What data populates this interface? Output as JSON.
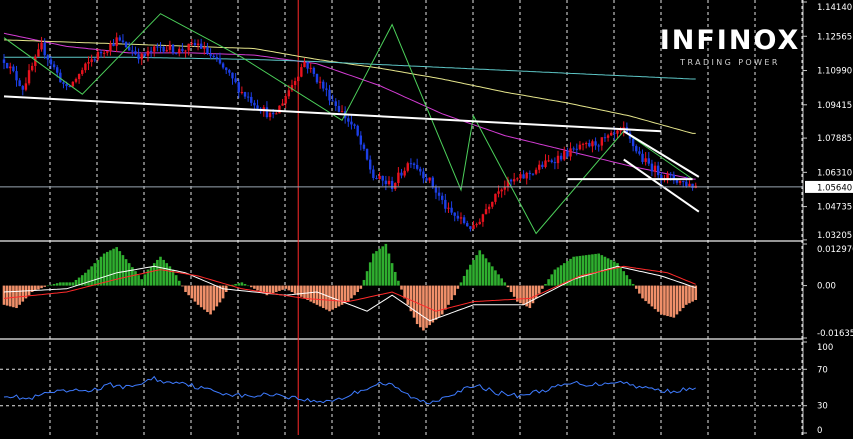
{
  "brand": {
    "name": "INFINOX",
    "tagline": "TRADING POWER"
  },
  "colors": {
    "background": "#000000",
    "grid": "#ffffff",
    "axis": "#c8c8c8",
    "text": "#ffffff",
    "bull_candle": "#e8121e",
    "bear_candle": "#1c3fe6",
    "ma_magenta": "#d43cd4",
    "ma_yellow": "#e6e68c",
    "ma_cyan": "#5ec8c8",
    "zigzag": "#4cd05a",
    "trendline": "#ffffff",
    "vertical_marker": "#ff2a2a",
    "histo_positive": "#2fae2f",
    "histo_negative": "#f0906a",
    "macd_line": "#ffffff",
    "signal_line": "#ff2a2a",
    "rsi_line": "#3e7bff"
  },
  "chart_data": [
    {
      "type": "candlestick",
      "panel": "price",
      "current_price": 1.0564,
      "current_price_label": "1.05640",
      "ylim": [
        1.032,
        1.1414
      ],
      "yticks": [
        {
          "value": 1.1414,
          "label": "1.14140"
        },
        {
          "value": 1.12565,
          "label": "1.12565"
        },
        {
          "value": 1.1099,
          "label": "1.10990"
        },
        {
          "value": 1.09415,
          "label": "1.09415"
        },
        {
          "value": 1.07885,
          "label": "1.07885"
        },
        {
          "value": 1.0631,
          "label": "1.06310"
        },
        {
          "value": 1.04735,
          "label": "1.04735"
        },
        {
          "value": 1.03205,
          "label": "1.03205"
        }
      ],
      "anchors": [
        [
          0,
          1.115
        ],
        [
          6,
          1.102
        ],
        [
          12,
          1.121
        ],
        [
          20,
          1.101
        ],
        [
          28,
          1.115
        ],
        [
          36,
          1.124
        ],
        [
          44,
          1.116
        ],
        [
          50,
          1.121
        ],
        [
          56,
          1.119
        ],
        [
          62,
          1.122
        ],
        [
          70,
          1.111
        ],
        [
          76,
          1.1
        ],
        [
          86,
          1.088
        ],
        [
          96,
          1.114
        ],
        [
          104,
          1.098
        ],
        [
          112,
          1.083
        ],
        [
          118,
          1.061
        ],
        [
          124,
          1.057
        ],
        [
          130,
          1.069
        ],
        [
          136,
          1.059
        ],
        [
          142,
          1.045
        ],
        [
          150,
          1.037
        ],
        [
          158,
          1.056
        ],
        [
          166,
          1.061
        ],
        [
          174,
          1.068
        ],
        [
          180,
          1.072
        ],
        [
          186,
          1.075
        ],
        [
          192,
          1.078
        ],
        [
          198,
          1.082
        ],
        [
          204,
          1.069
        ],
        [
          210,
          1.062
        ],
        [
          216,
          1.059
        ],
        [
          220,
          1.057
        ]
      ],
      "moving_averages": [
        {
          "color_key": "ma_magenta",
          "points": [
            [
              0,
              1.127
            ],
            [
              20,
              1.121
            ],
            [
              40,
              1.118
            ],
            [
              60,
              1.118
            ],
            [
              80,
              1.117
            ],
            [
              100,
              1.113
            ],
            [
              120,
              1.103
            ],
            [
              140,
              1.09
            ],
            [
              160,
              1.08
            ],
            [
              180,
              1.073
            ],
            [
              200,
              1.066
            ],
            [
              220,
              1.06
            ]
          ]
        },
        {
          "color_key": "ma_yellow",
          "points": [
            [
              0,
              1.124
            ],
            [
              20,
              1.123
            ],
            [
              40,
              1.122
            ],
            [
              60,
              1.121
            ],
            [
              80,
              1.12
            ],
            [
              100,
              1.115
            ],
            [
              120,
              1.111
            ],
            [
              140,
              1.106
            ],
            [
              160,
              1.1
            ],
            [
              180,
              1.095
            ],
            [
              200,
              1.089
            ],
            [
              220,
              1.081
            ]
          ]
        },
        {
          "color_key": "ma_cyan",
          "points": [
            [
              0,
              1.116
            ],
            [
              40,
              1.116
            ],
            [
              80,
              1.115
            ],
            [
              100,
              1.114
            ],
            [
              130,
              1.112
            ],
            [
              160,
              1.11
            ],
            [
              190,
              1.108
            ],
            [
              220,
              1.106
            ]
          ]
        }
      ],
      "zigzag": [
        [
          0,
          1.125
        ],
        [
          25,
          1.099
        ],
        [
          50,
          1.136
        ],
        [
          76,
          1.116
        ],
        [
          108,
          1.087
        ],
        [
          124,
          1.131
        ],
        [
          146,
          1.055
        ],
        [
          150,
          1.089
        ],
        [
          170,
          1.035
        ],
        [
          198,
          1.082
        ],
        [
          220,
          1.06
        ]
      ],
      "trendlines": [
        [
          [
            0,
            1.098
          ],
          [
            210,
            1.082
          ]
        ],
        [
          [
            180,
            1.06
          ],
          [
            220,
            1.06
          ]
        ],
        [
          [
            198,
            1.082
          ],
          [
            222,
            1.061
          ]
        ],
        [
          [
            198,
            1.069
          ],
          [
            222,
            1.045
          ]
        ]
      ],
      "vertical_marker_index": 94,
      "bar_count": 222
    },
    {
      "type": "macd",
      "panel": "macd",
      "ylim": [
        -0.01635,
        0.01297
      ],
      "yticks": [
        {
          "value": 0.01297,
          "label": "0.012976"
        },
        {
          "value": 0.0,
          "label": "0.00"
        },
        {
          "value": -0.01635,
          "label": "-0.01635"
        }
      ],
      "histogram_anchors": [
        [
          0,
          -0.006
        ],
        [
          4,
          -0.007
        ],
        [
          9,
          -0.002
        ],
        [
          14,
          0.0
        ],
        [
          18,
          0.001
        ],
        [
          22,
          0.001
        ],
        [
          26,
          0.004
        ],
        [
          32,
          0.01
        ],
        [
          36,
          0.012
        ],
        [
          40,
          0.007
        ],
        [
          44,
          0.002
        ],
        [
          46,
          0.005
        ],
        [
          50,
          0.009
        ],
        [
          54,
          0.005
        ],
        [
          58,
          -0.002
        ],
        [
          62,
          -0.006
        ],
        [
          66,
          -0.009
        ],
        [
          70,
          -0.004
        ],
        [
          72,
          0.0
        ],
        [
          76,
          0.001
        ],
        [
          80,
          -0.001
        ],
        [
          84,
          -0.003
        ],
        [
          90,
          -0.001
        ],
        [
          96,
          -0.004
        ],
        [
          104,
          -0.008
        ],
        [
          110,
          -0.005
        ],
        [
          114,
          -0.001
        ],
        [
          118,
          0.01
        ],
        [
          122,
          0.013
        ],
        [
          124,
          0.007
        ],
        [
          128,
          -0.004
        ],
        [
          132,
          -0.012
        ],
        [
          134,
          -0.014
        ],
        [
          140,
          -0.009
        ],
        [
          144,
          -0.003
        ],
        [
          148,
          0.005
        ],
        [
          152,
          0.011
        ],
        [
          156,
          0.006
        ],
        [
          160,
          0.001
        ],
        [
          164,
          -0.005
        ],
        [
          168,
          -0.007
        ],
        [
          172,
          -0.001
        ],
        [
          176,
          0.005
        ],
        [
          182,
          0.009
        ],
        [
          190,
          0.01
        ],
        [
          196,
          0.007
        ],
        [
          200,
          0.002
        ],
        [
          204,
          -0.004
        ],
        [
          210,
          -0.009
        ],
        [
          214,
          -0.01
        ],
        [
          218,
          -0.006
        ],
        [
          222,
          -0.004
        ]
      ],
      "macd_line": [
        [
          0,
          -0.002
        ],
        [
          20,
          -0.001
        ],
        [
          36,
          0.004
        ],
        [
          48,
          0.006
        ],
        [
          58,
          0.004
        ],
        [
          70,
          -0.001
        ],
        [
          90,
          -0.003
        ],
        [
          100,
          -0.002
        ],
        [
          116,
          -0.008
        ],
        [
          124,
          -0.003
        ],
        [
          136,
          -0.011
        ],
        [
          150,
          -0.006
        ],
        [
          166,
          -0.006
        ],
        [
          182,
          0.002
        ],
        [
          196,
          0.006
        ],
        [
          210,
          0.003
        ],
        [
          222,
          -0.001
        ]
      ],
      "signal_line": [
        [
          0,
          -0.004
        ],
        [
          20,
          -0.002
        ],
        [
          36,
          0.002
        ],
        [
          50,
          0.005
        ],
        [
          62,
          0.003
        ],
        [
          76,
          -0.001
        ],
        [
          96,
          -0.004
        ],
        [
          110,
          -0.005
        ],
        [
          124,
          -0.002
        ],
        [
          138,
          -0.008
        ],
        [
          150,
          -0.005
        ],
        [
          168,
          -0.004
        ],
        [
          184,
          0.003
        ],
        [
          198,
          0.006
        ],
        [
          212,
          0.004
        ],
        [
          222,
          0.0
        ]
      ],
      "bar_count": 222
    },
    {
      "type": "rsi",
      "panel": "rsi",
      "ylim": [
        0,
        100
      ],
      "yticks": [
        {
          "value": 100,
          "label": "100"
        },
        {
          "value": 70,
          "label": "70"
        },
        {
          "value": 30,
          "label": "30"
        },
        {
          "value": 0,
          "label": "0"
        }
      ],
      "levels": [
        70,
        30
      ],
      "rsi_anchors": [
        [
          0,
          42
        ],
        [
          8,
          37
        ],
        [
          14,
          44
        ],
        [
          22,
          46
        ],
        [
          30,
          48
        ],
        [
          34,
          53
        ],
        [
          40,
          50
        ],
        [
          48,
          60
        ],
        [
          52,
          55
        ],
        [
          56,
          57
        ],
        [
          62,
          50
        ],
        [
          70,
          44
        ],
        [
          78,
          40
        ],
        [
          86,
          43
        ],
        [
          94,
          38
        ],
        [
          100,
          34
        ],
        [
          108,
          38
        ],
        [
          112,
          44
        ],
        [
          120,
          55
        ],
        [
          124,
          52
        ],
        [
          132,
          36
        ],
        [
          136,
          33
        ],
        [
          142,
          42
        ],
        [
          148,
          49
        ],
        [
          152,
          51
        ],
        [
          158,
          44
        ],
        [
          164,
          41
        ],
        [
          170,
          45
        ],
        [
          176,
          50
        ],
        [
          182,
          55
        ],
        [
          188,
          53
        ],
        [
          196,
          57
        ],
        [
          204,
          50
        ],
        [
          212,
          46
        ],
        [
          220,
          48
        ],
        [
          222,
          47
        ]
      ],
      "bar_count": 222
    }
  ]
}
